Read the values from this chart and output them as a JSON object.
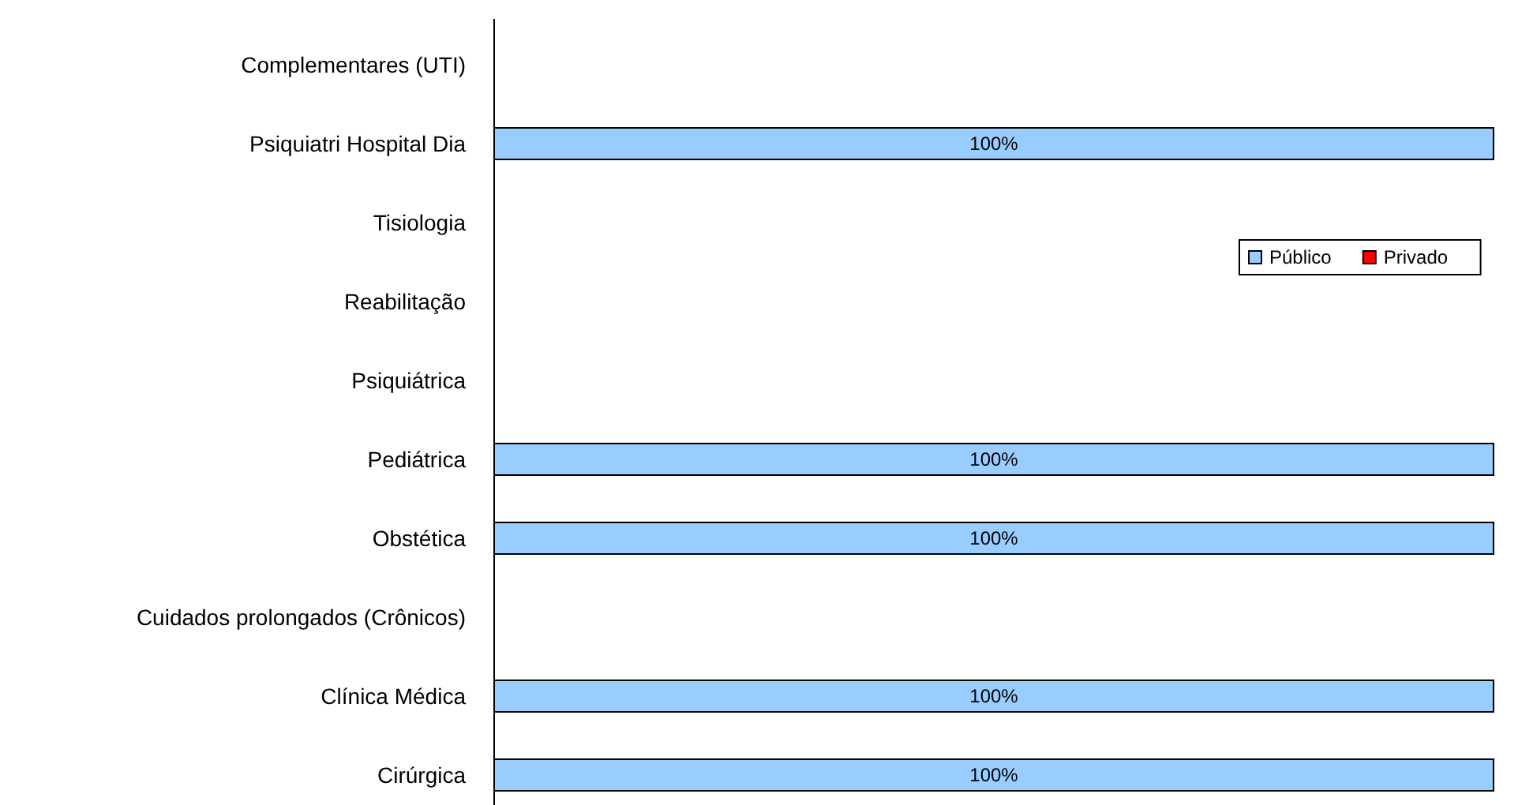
{
  "chart_data": {
    "type": "bar",
    "orientation": "horizontal",
    "stacked": true,
    "categories": [
      "Complementares (UTI)",
      "Psiquiatri Hospital Dia",
      "Tisiologia",
      "Reabilitação",
      "Psiquiátrica",
      "Pediátrica",
      "Obstética",
      "Cuidados prolongados (Crônicos)",
      "Clínica Médica",
      "Cirúrgica"
    ],
    "series": [
      {
        "name": "Público",
        "color": "#99ccff",
        "values": [
          null,
          100,
          null,
          null,
          null,
          100,
          100,
          null,
          100,
          100
        ],
        "value_labels": [
          null,
          "100%",
          null,
          null,
          null,
          "100%",
          "100%",
          null,
          "100%",
          "100%"
        ]
      },
      {
        "name": "Privado",
        "color": "#ff0000",
        "values": [
          null,
          0,
          null,
          null,
          null,
          0,
          0,
          null,
          0,
          0
        ]
      }
    ],
    "tick_labels": "y",
    "legend": "right"
  }
}
